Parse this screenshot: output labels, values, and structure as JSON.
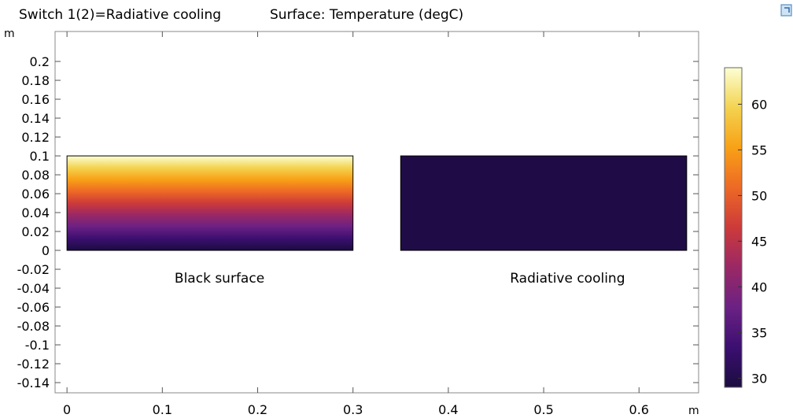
{
  "header": {
    "title_left": "Switch 1(2)=Radiative cooling",
    "title_right": "Surface: Temperature (degC)"
  },
  "chart_data": {
    "type": "heatmap",
    "title": "Surface: Temperature (degC)",
    "subtitle": "Switch 1(2)=Radiative cooling",
    "xlabel": "m",
    "ylabel": "m",
    "xlim": [
      -0.0125,
      0.6625
    ],
    "ylim": [
      -0.1508,
      0.2317
    ],
    "xticks": [
      0,
      0.1,
      0.2,
      0.3,
      0.4,
      0.5,
      0.6
    ],
    "xtick_labels": [
      "0",
      "0.1",
      "0.2",
      "0.3",
      "0.4",
      "0.5",
      "0.6"
    ],
    "yticks": [
      0.2,
      0.18,
      0.16,
      0.14,
      0.12,
      0.1,
      0.08,
      0.06,
      0.04,
      0.02,
      0,
      -0.02,
      -0.04,
      -0.06,
      -0.08,
      -0.1,
      -0.12,
      -0.14
    ],
    "ytick_labels": [
      "0.2",
      "0.18",
      "0.16",
      "0.14",
      "0.12",
      "0.1",
      "0.08",
      "0.06",
      "0.04",
      "0.02",
      "0",
      "-0.02",
      "-0.04",
      "-0.06",
      "-0.08",
      "-0.1",
      "-0.12",
      "-0.14"
    ],
    "domains": [
      {
        "name": "Black surface",
        "x": [
          0,
          0.3
        ],
        "y": [
          0,
          0.1
        ],
        "temp_bottom_degC": 29,
        "temp_top_degC": 64
      },
      {
        "name": "Radiative cooling",
        "x": [
          0.35,
          0.65
        ],
        "y": [
          0,
          0.1
        ],
        "temp_bottom_degC": 29.6,
        "temp_top_degC": 29.6
      }
    ],
    "labels": [
      {
        "text": "Black surface",
        "x": 0.16,
        "y": -0.034
      },
      {
        "text": "Radiative cooling",
        "x": 0.525,
        "y": -0.034
      }
    ],
    "colorbar": {
      "min": 29,
      "max": 64,
      "ticks": [
        60,
        55,
        50,
        45,
        40,
        35,
        30
      ],
      "tick_labels": [
        "60",
        "55",
        "50",
        "45",
        "40",
        "35",
        "30"
      ],
      "colormap": [
        "#1b0c41",
        "#3b0f70",
        "#6b2184",
        "#9a2865",
        "#cd3a3a",
        "#ed6925",
        "#f8a116",
        "#f3d350",
        "#fcffd4"
      ]
    },
    "grid": false
  }
}
